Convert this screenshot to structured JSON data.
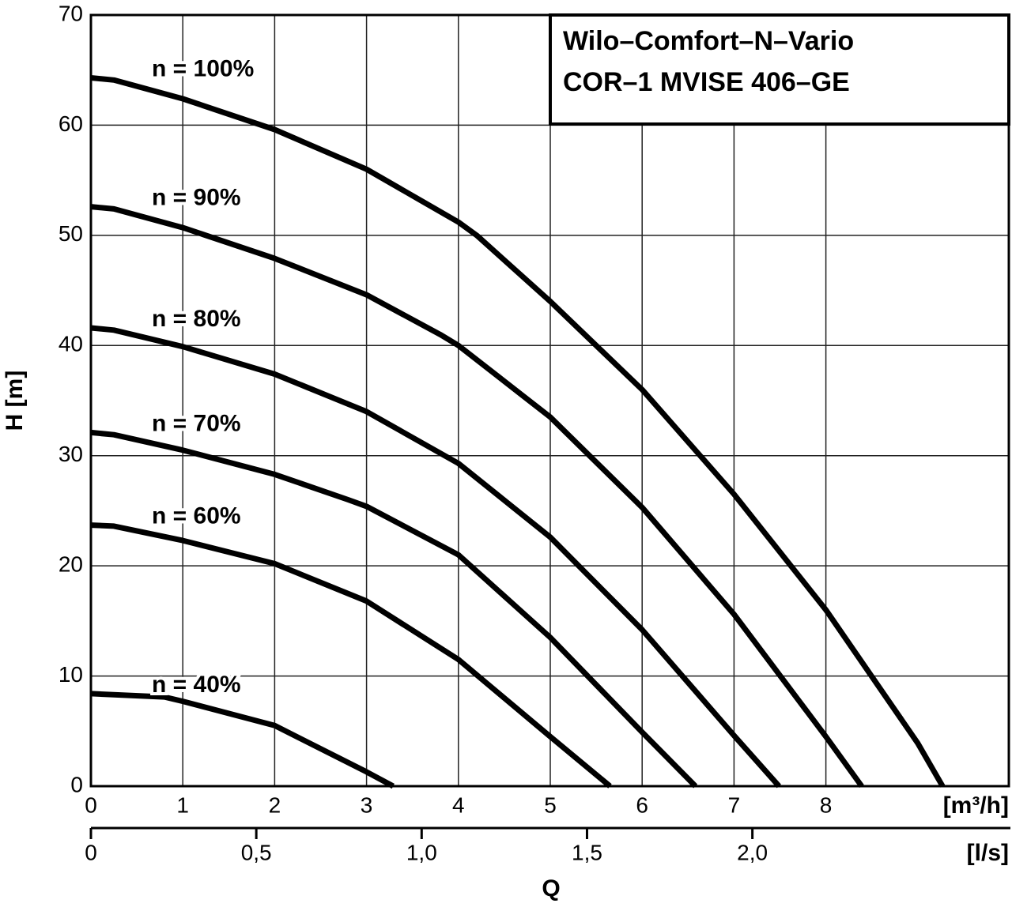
{
  "chart_data": {
    "type": "line",
    "title_lines": [
      "Wilo–Comfort–N–Vario",
      "COR–1 MVISE 406–GE"
    ],
    "xlabel": "Q",
    "ylabel": "H [m]",
    "x_unit_label": "[m³/h]",
    "x2_unit_label": "[l/s]",
    "xlim": [
      0,
      10
    ],
    "xticks": [
      0,
      1,
      2,
      3,
      4,
      5,
      6,
      7,
      8
    ],
    "x2lim": [
      0,
      2.7778
    ],
    "x2ticks": [
      0,
      {
        "value": 0.5,
        "label": "0,5"
      },
      {
        "value": 1.0,
        "label": "1,0"
      },
      {
        "value": 1.5,
        "label": "1,5"
      },
      {
        "value": 2.0,
        "label": "2,0"
      }
    ],
    "ylim": [
      0,
      70
    ],
    "yticks": [
      0,
      10,
      20,
      30,
      40,
      50,
      60,
      70
    ],
    "grid": true,
    "series": [
      {
        "name": "n = 100%",
        "color": "#000000",
        "x": [
          0,
          0.25,
          1,
          2,
          3,
          4,
          4.2,
          5,
          6,
          7,
          8,
          9,
          9.27
        ],
        "values": [
          64.3,
          64.1,
          62.4,
          59.6,
          56,
          51.2,
          50,
          44,
          36,
          26.5,
          16,
          3.9,
          0
        ]
      },
      {
        "name": "n = 90%",
        "color": "#000000",
        "x": [
          0,
          0.25,
          1,
          2,
          3,
          3.8,
          4,
          5,
          6,
          7,
          8,
          8.39
        ],
        "values": [
          52.6,
          52.4,
          50.7,
          47.9,
          44.6,
          41,
          40,
          33.5,
          25.3,
          15.6,
          4.5,
          0
        ]
      },
      {
        "name": "n = 80%",
        "color": "#000000",
        "x": [
          0,
          0.25,
          1,
          2,
          3,
          4,
          5,
          6,
          7,
          7.49
        ],
        "values": [
          41.6,
          41.4,
          39.9,
          37.4,
          34,
          29.3,
          22.6,
          14.2,
          4.6,
          0
        ]
      },
      {
        "name": "n = 70%",
        "color": "#000000",
        "x": [
          0,
          0.25,
          1,
          2,
          2.8,
          3,
          4,
          5,
          6,
          6.58
        ],
        "values": [
          32.1,
          31.9,
          30.5,
          28.3,
          26,
          25.4,
          21,
          13.5,
          4.9,
          0
        ]
      },
      {
        "name": "n = 60%",
        "color": "#000000",
        "x": [
          0,
          0.25,
          1,
          2,
          3,
          4,
          5,
          5.65
        ],
        "values": [
          23.7,
          23.6,
          22.3,
          20.2,
          16.8,
          11.5,
          4.5,
          0
        ]
      },
      {
        "name": "n = 40%",
        "color": "#000000",
        "x": [
          0,
          0.8,
          1,
          2,
          3,
          3.29
        ],
        "values": [
          8.4,
          8.1,
          7.7,
          5.5,
          1.3,
          0
        ]
      }
    ]
  }
}
